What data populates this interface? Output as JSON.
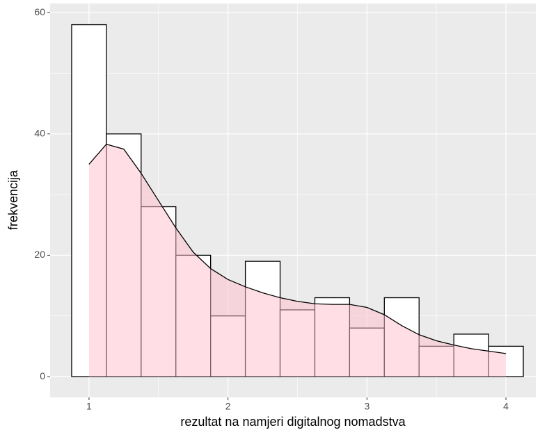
{
  "chart_data": {
    "type": "histogram",
    "x_label": "rezultat na namjeri digitalnog nomadstva",
    "y_label": "frekvencija",
    "bins": [
      0.875,
      1.125,
      1.375,
      1.625,
      1.875,
      2.125,
      2.375,
      2.625,
      2.875,
      3.125,
      3.375,
      3.625,
      3.875,
      4.125
    ],
    "counts": [
      58,
      40,
      28,
      20,
      10,
      19,
      11,
      13,
      8,
      13,
      5,
      7,
      5
    ],
    "bar_color": "#ffffff",
    "bar_edge_color": "#000000",
    "density": {
      "color": "#ffc0cb",
      "line_color": "#000000",
      "x": [
        1,
        1.125,
        1.25,
        1.375,
        1.5,
        1.625,
        1.75,
        1.875,
        2,
        2.125,
        2.25,
        2.375,
        2.5,
        2.625,
        2.75,
        2.875,
        3,
        3.125,
        3.25,
        3.375,
        3.5,
        3.625,
        3.75,
        3.875,
        4
      ],
      "values": [
        35,
        38.3,
        37.5,
        33.5,
        29,
        24.5,
        20.5,
        17.8,
        16,
        14.8,
        13.8,
        13,
        12.4,
        12,
        11.9,
        11.9,
        11.4,
        10.2,
        8.4,
        6.9,
        5.9,
        5.2,
        4.6,
        4.2,
        3.8
      ]
    },
    "xlim": [
      0.72,
      4.215
    ],
    "xticks": [
      1,
      2,
      3,
      4
    ],
    "ylim": [
      -3.43,
      61.5
    ],
    "yticks": [
      0,
      20,
      40,
      60
    ],
    "grid": true
  }
}
